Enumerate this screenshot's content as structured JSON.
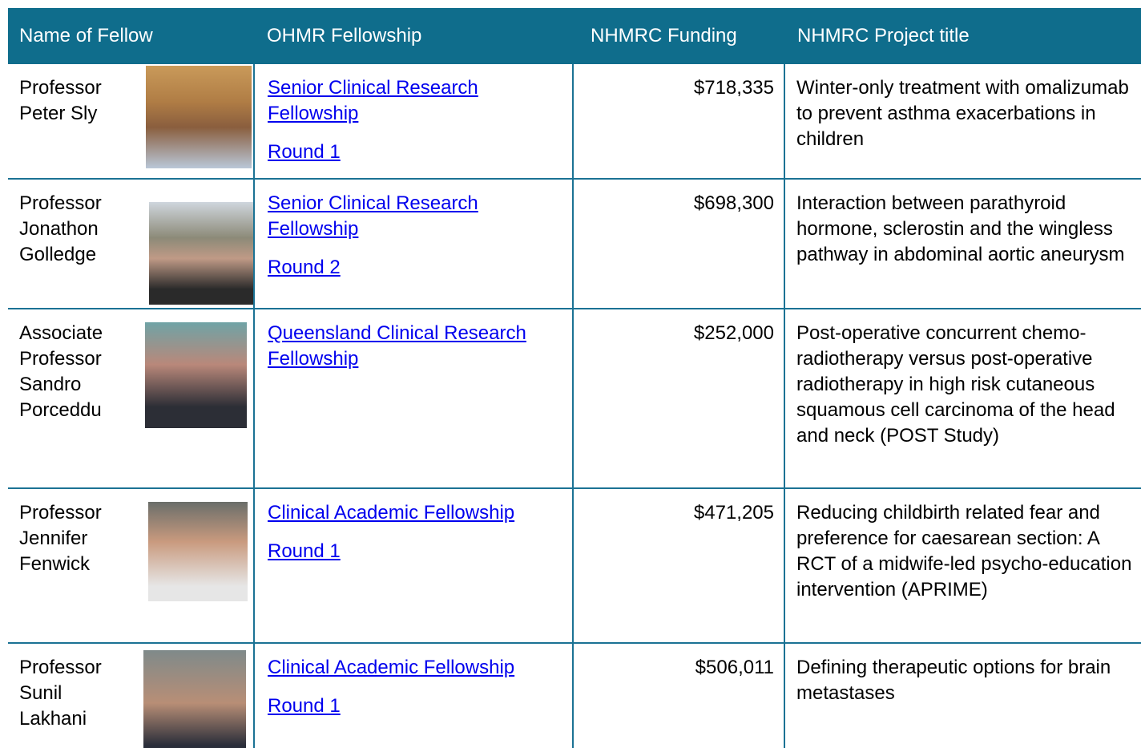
{
  "table": {
    "header": [
      "Name of Fellow",
      "OHMR Fellowship",
      "NHMRC Funding",
      "NHMRC Project title"
    ],
    "rows": [
      {
        "name": "Professor Peter Sly",
        "links": [
          "Senior Clinical Research Fellowship",
          "Round 1"
        ],
        "funding": "$718,335",
        "title": "Winter-only treatment with omalizumab to prevent asthma exacerbations in children"
      },
      {
        "name": "Professor Jonathon Golledge",
        "links": [
          "Senior Clinical Research Fellowship",
          "Round 2"
        ],
        "funding": "$698,300",
        "title": "Interaction between parathyroid hormone, sclerostin and the wingless pathway in abdominal aortic aneurysm"
      },
      {
        "name": "Associate Professor Sandro Porceddu",
        "links": [
          "Queensland Clinical Research Fellowship"
        ],
        "funding": "$252,000",
        "title": "Post-operative concurrent chemo-radiotherapy versus post-operative radiotherapy in high risk cutaneous squamous cell carcinoma of the head and neck (POST Study)"
      },
      {
        "name": "Professor Jennifer Fenwick",
        "links": [
          "Clinical Academic Fellowship",
          "Round 1"
        ],
        "funding": "$471,205",
        "title": "Reducing childbirth related fear and preference for caesarean section: A RCT of a midwife-led psycho-education intervention (APRIME)"
      },
      {
        "name": "Professor Sunil Lakhani",
        "links": [
          "Clinical Academic Fellowship",
          "Round 1"
        ],
        "funding": "$506,011",
        "title": "Defining therapeutic options for brain metastases"
      }
    ]
  }
}
